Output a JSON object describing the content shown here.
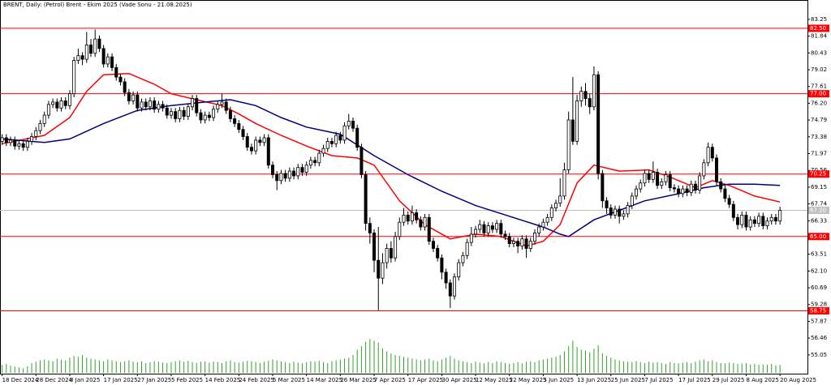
{
  "chart_data": {
    "type": "candlestick",
    "title": "BRENT, Daily:  (Petrol) Brent - Ekim 2025 (Vade Sonu - 21.08.2025)",
    "xlim": [
      -0.5,
      190.5
    ],
    "xticks": [
      {
        "value": 0,
        "label": "18 Dec 2024"
      },
      {
        "value": 8,
        "label": "28 Dec 2024"
      },
      {
        "value": 16,
        "label": "8 Jan 2025"
      },
      {
        "value": 24,
        "label": "17 Jan 2025"
      },
      {
        "value": 32,
        "label": "27 Jan 2025"
      },
      {
        "value": 40,
        "label": "5 Feb 2025"
      },
      {
        "value": 48,
        "label": "14 Feb 2025"
      },
      {
        "value": 56,
        "label": "24 Feb 2025"
      },
      {
        "value": 64,
        "label": "5 Mar 2025"
      },
      {
        "value": 72,
        "label": "14 Mar 2025"
      },
      {
        "value": 80,
        "label": "26 Mar 2025"
      },
      {
        "value": 88,
        "label": "7 Apr 2025"
      },
      {
        "value": 96,
        "label": "17 Apr 2025"
      },
      {
        "value": 104,
        "label": "30 Apr 2025"
      },
      {
        "value": 112,
        "label": "12 May 2025"
      },
      {
        "value": 120,
        "label": "22 May 2025"
      },
      {
        "value": 128,
        "label": "3 Jun 2025"
      },
      {
        "value": 136,
        "label": "13 Jun 2025"
      },
      {
        "value": 144,
        "label": "25 Jun 2025"
      },
      {
        "value": 152,
        "label": "7 Jul 2025"
      },
      {
        "value": 160,
        "label": "17 Jul 2025"
      },
      {
        "value": 168,
        "label": "29 Jul 2025"
      },
      {
        "value": 176,
        "label": "8 Aug 2025"
      },
      {
        "value": 184,
        "label": "20 Aug 2025"
      }
    ],
    "ylim": [
      53.54,
      84.88
    ],
    "yticks": [
      83.25,
      81.84,
      80.43,
      79.02,
      77.61,
      {
        "value": 76.2,
        "label": "76.20"
      },
      74.79,
      73.38,
      71.97,
      70.56,
      69.15,
      67.74,
      66.33,
      64.92,
      63.51,
      {
        "value": 62.1,
        "label": "62.10"
      },
      60.69,
      59.28,
      57.87,
      56.46,
      55.05
    ],
    "open": [
      73.0,
      73.3,
      72.9,
      73.1,
      72.6,
      72.8,
      72.5,
      73.0,
      73.4,
      73.9,
      74.5,
      75.2,
      76.1,
      76.3,
      75.8,
      76.4,
      76.0,
      77.0,
      79.8,
      80.2,
      79.9,
      81.1,
      80.4,
      81.6,
      80.8,
      79.5,
      80.1,
      79.2,
      78.4,
      78.0,
      77.1,
      76.4,
      76.9,
      75.8,
      76.3,
      75.9,
      76.4,
      75.7,
      76.1,
      75.8,
      75.2,
      75.5,
      74.9,
      75.6,
      75.1,
      75.9,
      76.6,
      75.4,
      74.8,
      75.2,
      75.0,
      75.7,
      76.1,
      76.3,
      75.6,
      74.9,
      74.5,
      74.0,
      73.4,
      72.5,
      72.2,
      73.1,
      72.9,
      73.3,
      71.0,
      70.2,
      69.7,
      70.3,
      69.9,
      70.5,
      70.1,
      70.8,
      70.4,
      71.0,
      71.4,
      71.2,
      72.0,
      72.4,
      73.0,
      72.8,
      73.5,
      73.1,
      74.3,
      74.7,
      74.1,
      72.5,
      70.2,
      66.1,
      65.3,
      63.0,
      61.5,
      62.8,
      64.0,
      63.2,
      65.0,
      66.2,
      66.8,
      66.3,
      67.0,
      66.4,
      65.8,
      66.6,
      64.6,
      64.0,
      63.2,
      62.0,
      61.1,
      60.0,
      61.6,
      62.8,
      63.4,
      64.5,
      65.2,
      65.6,
      66.0,
      65.3,
      65.9,
      65.6,
      66.1,
      65.2,
      65.0,
      64.4,
      64.6,
      64.2,
      64.8,
      64.0,
      64.6,
      65.3,
      65.8,
      66.2,
      66.6,
      67.4,
      67.8,
      68.4,
      70.6,
      74.8,
      73.0,
      76.4,
      77.2,
      76.6,
      75.9,
      78.6,
      70.3,
      68.0,
      67.4,
      66.8,
      67.3,
      66.7,
      66.9,
      67.6,
      68.4,
      69.0,
      69.5,
      70.3,
      69.8,
      70.4,
      69.3,
      69.6,
      70.2,
      69.1,
      69.0,
      68.6,
      69.0,
      68.7,
      69.4,
      68.9,
      70.1,
      71.2,
      72.5,
      71.6,
      69.6,
      69.0,
      68.2,
      67.7,
      66.6,
      66.0,
      66.8,
      65.8,
      66.4,
      66.1,
      66.7,
      65.9,
      66.3,
      66.6,
      66.3
    ],
    "high": [
      73.6,
      73.6,
      73.4,
      73.4,
      73.1,
      73.1,
      73.3,
      73.7,
      74.2,
      74.8,
      75.5,
      76.4,
      76.6,
      76.6,
      76.7,
      76.7,
      77.3,
      80.1,
      80.8,
      80.5,
      82.2,
      81.6,
      82.4,
      81.9,
      81.1,
      80.4,
      80.4,
      79.5,
      78.7,
      78.3,
      77.4,
      77.2,
      77.2,
      76.6,
      76.6,
      76.7,
      76.7,
      76.4,
      76.4,
      76.1,
      75.8,
      75.8,
      75.9,
      75.9,
      76.2,
      76.9,
      76.9,
      75.7,
      75.5,
      75.5,
      76.0,
      76.4,
      77.0,
      76.6,
      75.9,
      75.2,
      74.8,
      74.3,
      73.7,
      72.8,
      73.4,
      73.4,
      73.6,
      73.6,
      71.3,
      70.5,
      70.6,
      70.6,
      70.8,
      70.8,
      71.1,
      71.1,
      71.3,
      71.7,
      71.7,
      72.3,
      72.7,
      73.3,
      73.3,
      73.8,
      73.8,
      74.6,
      75.3,
      75.0,
      74.4,
      72.8,
      70.5,
      66.6,
      65.6,
      65.8,
      63.6,
      64.4,
      64.6,
      65.4,
      66.6,
      67.4,
      67.1,
      67.6,
      67.3,
      66.7,
      66.9,
      66.9,
      64.9,
      64.3,
      63.5,
      62.3,
      61.4,
      61.9,
      63.1,
      63.7,
      64.8,
      65.8,
      65.9,
      66.4,
      66.3,
      66.2,
      66.2,
      66.4,
      66.4,
      65.5,
      65.3,
      64.9,
      64.9,
      65.1,
      65.1,
      64.9,
      65.6,
      66.1,
      66.5,
      66.9,
      67.7,
      68.1,
      69.9,
      71.2,
      75.5,
      78.4,
      76.9,
      77.6,
      77.9,
      77.0,
      79.3,
      78.9,
      70.6,
      68.3,
      67.7,
      67.6,
      67.6,
      67.2,
      67.9,
      68.7,
      69.3,
      69.8,
      70.6,
      70.6,
      71.3,
      70.7,
      69.9,
      70.5,
      70.5,
      69.4,
      69.3,
      69.3,
      69.3,
      69.7,
      69.7,
      70.4,
      71.5,
      72.9,
      72.8,
      71.9,
      69.9,
      69.3,
      68.5,
      68.0,
      66.9,
      67.1,
      67.1,
      66.7,
      66.7,
      67.0,
      67.0,
      66.6,
      66.9,
      66.9,
      67.5
    ],
    "low": [
      72.7,
      72.6,
      72.6,
      72.3,
      72.3,
      72.2,
      72.2,
      72.7,
      73.1,
      73.6,
      74.2,
      74.9,
      75.8,
      75.5,
      75.5,
      75.7,
      75.7,
      76.7,
      79.5,
      79.4,
      79.6,
      80.1,
      80.1,
      80.5,
      79.2,
      79.2,
      78.9,
      78.1,
      77.7,
      76.8,
      76.1,
      76.1,
      75.5,
      75.5,
      75.6,
      75.6,
      75.4,
      75.4,
      75.5,
      74.9,
      74.9,
      74.6,
      74.6,
      74.8,
      74.8,
      75.6,
      75.1,
      74.5,
      74.5,
      74.7,
      74.7,
      75.4,
      75.8,
      75.3,
      74.6,
      74.2,
      73.7,
      73.1,
      72.2,
      71.9,
      71.9,
      72.6,
      72.6,
      70.7,
      69.9,
      68.9,
      69.4,
      69.6,
      69.6,
      69.8,
      69.8,
      70.1,
      70.1,
      70.7,
      70.9,
      70.9,
      71.7,
      72.1,
      72.5,
      72.5,
      72.8,
      72.8,
      74.0,
      73.8,
      72.2,
      69.9,
      65.5,
      64.4,
      62.0,
      58.8,
      61.0,
      62.3,
      62.8,
      62.9,
      64.7,
      65.9,
      66.0,
      66.0,
      66.1,
      65.5,
      65.5,
      64.3,
      63.7,
      62.9,
      61.4,
      60.6,
      59.0,
      59.7,
      61.3,
      62.5,
      63.1,
      64.2,
      64.9,
      65.3,
      65.0,
      65.0,
      65.3,
      65.3,
      64.9,
      64.7,
      64.1,
      64.1,
      63.6,
      63.9,
      63.2,
      63.7,
      64.3,
      65.0,
      65.5,
      65.9,
      66.3,
      67.1,
      67.5,
      68.1,
      70.3,
      72.7,
      72.7,
      75.9,
      76.0,
      75.3,
      75.6,
      69.8,
      67.4,
      66.9,
      66.5,
      66.5,
      66.1,
      66.4,
      66.6,
      67.3,
      68.1,
      68.7,
      69.2,
      69.5,
      69.5,
      69.0,
      69.0,
      69.3,
      68.8,
      68.7,
      68.3,
      68.3,
      68.4,
      68.4,
      68.6,
      68.6,
      69.8,
      70.9,
      71.3,
      69.3,
      68.7,
      67.9,
      67.4,
      66.3,
      65.6,
      65.7,
      65.5,
      65.5,
      65.8,
      65.8,
      65.6,
      65.6,
      66.0,
      66.0,
      66.0
    ],
    "close": [
      73.3,
      72.9,
      73.1,
      72.6,
      72.8,
      72.5,
      73.0,
      73.4,
      73.9,
      74.5,
      75.2,
      76.1,
      76.3,
      75.8,
      76.4,
      76.0,
      77.0,
      79.8,
      80.2,
      79.9,
      81.1,
      80.4,
      81.6,
      80.8,
      79.5,
      80.1,
      79.2,
      78.4,
      78.0,
      77.1,
      76.4,
      76.9,
      75.8,
      76.3,
      75.9,
      76.4,
      75.7,
      76.1,
      75.8,
      75.2,
      75.5,
      74.9,
      75.6,
      75.1,
      75.9,
      76.6,
      75.4,
      74.8,
      75.2,
      75.0,
      75.7,
      76.1,
      76.3,
      75.6,
      74.9,
      74.5,
      74.0,
      73.4,
      72.5,
      72.2,
      73.1,
      72.9,
      73.3,
      71.0,
      70.2,
      69.7,
      70.3,
      69.9,
      70.5,
      70.1,
      70.8,
      70.4,
      71.0,
      71.4,
      71.2,
      72.0,
      72.4,
      73.0,
      72.8,
      73.5,
      73.1,
      74.3,
      74.7,
      74.1,
      72.5,
      70.2,
      66.1,
      65.3,
      63.0,
      61.5,
      62.8,
      64.0,
      63.2,
      65.0,
      66.2,
      66.8,
      66.3,
      67.0,
      66.4,
      65.8,
      66.6,
      64.6,
      64.0,
      63.2,
      62.0,
      61.1,
      60.0,
      61.6,
      62.8,
      63.4,
      64.5,
      65.2,
      65.6,
      66.0,
      65.3,
      65.9,
      65.6,
      66.1,
      65.2,
      65.0,
      64.4,
      64.6,
      64.2,
      64.8,
      64.0,
      64.6,
      65.3,
      65.8,
      66.2,
      66.6,
      67.4,
      67.8,
      68.4,
      70.6,
      74.8,
      73.0,
      76.4,
      77.2,
      76.6,
      75.9,
      78.6,
      70.3,
      68.0,
      67.4,
      66.8,
      67.3,
      66.7,
      66.9,
      67.6,
      68.4,
      69.0,
      69.5,
      70.3,
      69.8,
      70.4,
      69.3,
      69.6,
      70.2,
      69.1,
      69.0,
      68.6,
      69.0,
      68.7,
      69.4,
      68.9,
      70.1,
      71.2,
      72.5,
      71.6,
      69.6,
      69.0,
      68.2,
      67.7,
      66.6,
      66.0,
      66.8,
      65.8,
      66.4,
      66.1,
      66.7,
      65.9,
      66.3,
      66.6,
      66.3,
      67.2
    ],
    "volume": [
      18,
      20,
      16,
      14,
      12,
      10,
      15,
      22,
      25,
      28,
      30,
      28,
      26,
      32,
      30,
      28,
      34,
      38,
      36,
      40,
      34,
      32,
      30,
      28,
      26,
      30,
      28,
      26,
      24,
      26,
      28,
      25,
      24,
      26,
      22,
      24,
      26,
      25,
      23,
      22,
      24,
      26,
      28,
      25,
      27,
      24,
      22,
      25,
      26,
      23,
      25,
      24,
      22,
      26,
      28,
      24,
      23,
      25,
      27,
      26,
      24,
      22,
      25,
      27,
      30,
      28,
      26,
      24,
      22,
      25,
      23,
      21,
      24,
      26,
      25,
      27,
      24,
      22,
      26,
      28,
      30,
      32,
      34,
      40,
      52,
      60,
      70,
      76,
      72,
      68,
      55,
      48,
      44,
      40,
      38,
      36,
      34,
      32,
      30,
      28,
      30,
      32,
      28,
      26,
      30,
      34,
      38,
      32,
      28,
      26,
      24,
      22,
      25,
      23,
      21,
      24,
      22,
      26,
      24,
      22,
      20,
      22,
      24,
      21,
      25,
      26,
      24,
      28,
      30,
      32,
      34,
      36,
      40,
      48,
      60,
      72,
      58,
      52,
      50,
      46,
      54,
      62,
      44,
      38,
      34,
      30,
      28,
      26,
      25,
      24,
      26,
      24,
      22,
      25,
      23,
      24,
      22,
      20,
      24,
      22,
      21,
      23,
      24,
      22,
      25,
      28,
      30,
      26,
      28,
      24,
      22,
      21,
      23,
      22,
      20,
      21,
      22,
      19,
      20,
      18,
      19,
      18,
      20,
      17,
      18
    ],
    "vlim": [
      0,
      100
    ],
    "up_color": "#ffffff",
    "down_color": "#000000",
    "volume_color": "#33a02c",
    "moving_averages": [
      {
        "color": "#ff0000",
        "x": [
          0,
          10,
          16,
          20,
          24,
          30,
          36,
          40,
          46,
          52,
          56,
          60,
          66,
          72,
          78,
          84,
          88,
          94,
          100,
          106,
          112,
          118,
          124,
          128,
          132,
          136,
          140,
          146,
          153,
          158,
          164,
          168,
          172,
          178,
          184
        ],
        "values": [
          72.8,
          73.5,
          75.0,
          77.2,
          78.6,
          78.7,
          77.8,
          77.0,
          76.5,
          76.0,
          75.3,
          74.5,
          73.5,
          72.6,
          71.8,
          71.6,
          71.0,
          68.0,
          66.0,
          64.8,
          65.2,
          65.0,
          64.2,
          64.6,
          66.0,
          69.5,
          71.0,
          70.5,
          70.6,
          70.0,
          69.1,
          69.7,
          69.3,
          68.4,
          67.9
        ]
      },
      {
        "color": "#000080",
        "x": [
          0,
          10,
          16,
          24,
          32,
          40,
          48,
          54,
          60,
          66,
          72,
          80,
          88,
          96,
          104,
          112,
          120,
          128,
          132,
          134,
          140,
          146,
          152,
          160,
          166,
          172,
          178,
          184
        ],
        "values": [
          73.2,
          72.9,
          73.2,
          74.5,
          75.6,
          76.0,
          76.3,
          76.5,
          76.0,
          75.0,
          74.2,
          73.6,
          71.8,
          70.2,
          68.8,
          67.6,
          66.7,
          65.8,
          65.2,
          65.0,
          66.4,
          67.2,
          68.0,
          68.6,
          69.1,
          69.4,
          69.4,
          69.3
        ]
      }
    ],
    "level_color": "#ff0000",
    "levels": [
      {
        "value": 82.5,
        "label": "82.50"
      },
      {
        "value": 77.0,
        "label": "77.00"
      },
      {
        "value": 70.25,
        "label": "70.25"
      },
      {
        "value": 65.0,
        "label": "65.00"
      },
      {
        "value": 58.75,
        "label": "58.75"
      }
    ],
    "price_line": {
      "value": 67.2,
      "label": "67.20",
      "color": "#c0c0c0"
    }
  }
}
